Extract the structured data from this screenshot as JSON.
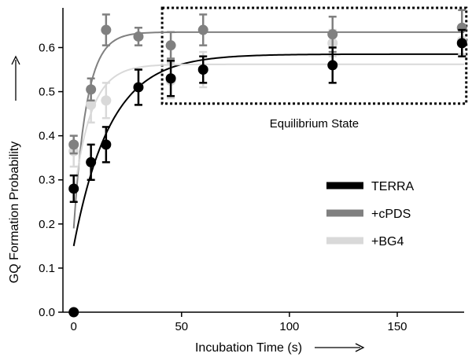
{
  "chart_data": {
    "type": "scatter",
    "xlabel": "Incubation Time (s)",
    "ylabel": "GQ Formation Probability",
    "xlim": [
      -5,
      181
    ],
    "ylim": [
      0,
      0.69
    ],
    "xticks": [
      0,
      50,
      100,
      150
    ],
    "yticks": [
      0.0,
      0.1,
      0.2,
      0.3,
      0.4,
      0.5,
      0.6
    ],
    "ytick_labels": [
      "0.0",
      "0.1",
      "0.2",
      "0.3",
      "0.4",
      "0.5",
      "0.6"
    ],
    "legend_position": "right",
    "annotation": {
      "label": "Equilibrium State",
      "box_x": [
        41,
        182
      ],
      "box_y": [
        0.473,
        0.69
      ]
    },
    "series": [
      {
        "name": "TERRA",
        "color": "#000000",
        "points": [
          {
            "x": 0,
            "y": 0.0,
            "err": 0.0
          },
          {
            "x": 0,
            "y": 0.28,
            "err": 0.03
          },
          {
            "x": 8,
            "y": 0.34,
            "err": 0.04
          },
          {
            "x": 15,
            "y": 0.38,
            "err": 0.04
          },
          {
            "x": 30,
            "y": 0.51,
            "err": 0.04
          },
          {
            "x": 45,
            "y": 0.53,
            "err": 0.04
          },
          {
            "x": 60,
            "y": 0.55,
            "err": 0.03
          },
          {
            "x": 120,
            "y": 0.56,
            "err": 0.04
          },
          {
            "x": 180,
            "y": 0.61,
            "err": 0.03
          }
        ],
        "fit": {
          "y0": 0.15,
          "ymax": 0.585,
          "tau": 17
        }
      },
      {
        "name": "+cPDS",
        "color": "#808080",
        "points": [
          {
            "x": 0,
            "y": 0.38,
            "err": 0.02
          },
          {
            "x": 8,
            "y": 0.505,
            "err": 0.025
          },
          {
            "x": 15,
            "y": 0.64,
            "err": 0.035
          },
          {
            "x": 30,
            "y": 0.625,
            "err": 0.02
          },
          {
            "x": 45,
            "y": 0.605,
            "err": 0.03
          },
          {
            "x": 60,
            "y": 0.64,
            "err": 0.035
          },
          {
            "x": 120,
            "y": 0.63,
            "err": 0.04
          },
          {
            "x": 180,
            "y": 0.645,
            "err": 0.04
          }
        ],
        "fit": {
          "y0": 0.19,
          "ymax": 0.635,
          "tau": 6
        }
      },
      {
        "name": "+BG4",
        "color": "#d9d9d9",
        "points": [
          {
            "x": 0,
            "y": 0.365,
            "err": 0.035
          },
          {
            "x": 8,
            "y": 0.47,
            "err": 0.04
          },
          {
            "x": 15,
            "y": 0.48,
            "err": 0.04
          },
          {
            "x": 30,
            "y": 0.51,
            "err": 0.04
          },
          {
            "x": 45,
            "y": 0.525,
            "err": 0.04
          },
          {
            "x": 60,
            "y": 0.55,
            "err": 0.04
          },
          {
            "x": 120,
            "y": 0.61,
            "err": 0.03
          },
          {
            "x": 180,
            "y": 0.615,
            "err": 0.03
          }
        ],
        "fit": {
          "y0": 0.26,
          "ymax": 0.562,
          "tau": 8
        }
      }
    ]
  }
}
